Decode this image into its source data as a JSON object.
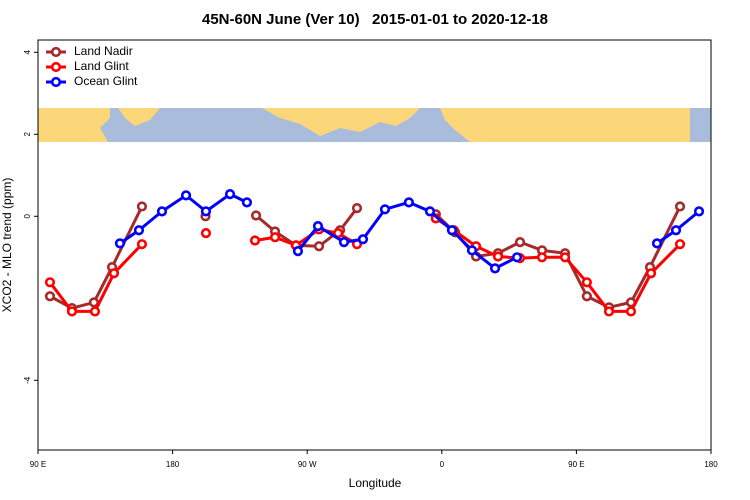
{
  "chart_data": {
    "type": "line",
    "title": "45N-60N June (Ver 10)   2015-01-01 to 2020-12-18",
    "xlabel": "Longitude",
    "ylabel": "XCO2 - MLO trend (ppm)",
    "xlim": [
      90,
      540
    ],
    "ylim": [
      -5.7,
      4.3
    ],
    "xticks": [
      {
        "value": 90,
        "label": "90 E"
      },
      180,
      {
        "value": 270,
        "label": "90 W"
      },
      {
        "value": 360,
        "label": "0"
      },
      {
        "value": 450,
        "label": "90 E"
      },
      {
        "value": 540,
        "label": "180"
      }
    ],
    "yticks": [
      -4,
      0,
      2,
      4
    ],
    "legend": "top-left",
    "series": [
      {
        "name": "Land Nadir",
        "color": "#a52a2a",
        "x": [
          98,
          112.7,
          127.4,
          139.5,
          159.5,
          null,
          202,
          null,
          235.8,
          248.5,
          262.5,
          277.9,
          292,
          303.3,
          null,
          356,
          368.8,
          382.9,
          397.6,
          412.3,
          427,
          442.4,
          457,
          471.8,
          486.5,
          499.2,
          519.3
        ],
        "values": [
          -1.95,
          -2.24,
          -2.1,
          -1.24,
          0.24,
          null,
          0.0,
          null,
          0.02,
          -0.37,
          -0.71,
          -0.73,
          -0.34,
          0.2,
          null,
          0.05,
          -0.39,
          -0.98,
          -0.9,
          -0.63,
          -0.83,
          -0.9,
          -1.95,
          -2.22,
          -2.1,
          -1.24,
          0.24
        ]
      },
      {
        "name": "Land Glint",
        "color": "#ff0000",
        "x": [
          98,
          112.7,
          128.1,
          140.8,
          159.5,
          null,
          202.3,
          null,
          235.1,
          248.5,
          262.5,
          277.9,
          290.7,
          303.3,
          null,
          356,
          368,
          382.9,
          397.6,
          412.3,
          427,
          442.4,
          457,
          471.8,
          486.5,
          499.9,
          519.3
        ],
        "values": [
          -1.61,
          -2.32,
          -2.32,
          -1.39,
          -0.68,
          null,
          -0.41,
          null,
          -0.59,
          -0.51,
          -0.71,
          -0.32,
          -0.41,
          -0.68,
          null,
          -0.05,
          -0.34,
          -0.73,
          -0.98,
          -1.02,
          -1.0,
          -1.0,
          -1.61,
          -2.32,
          -2.32,
          -1.39,
          -0.68
        ]
      },
      {
        "name": "Ocean Glint",
        "color": "#0000ff",
        "x": [
          144.8,
          157.5,
          172.9,
          189,
          202.3,
          218.4,
          229.7,
          null,
          263.8,
          277.2,
          294.6,
          307.3,
          322,
          338,
          352.1,
          366.8,
          380.2,
          395.6,
          410.3,
          null,
          503.9,
          516.6,
          532
        ],
        "values": [
          -0.66,
          -0.34,
          0.12,
          0.51,
          0.12,
          0.54,
          0.34,
          null,
          -0.85,
          -0.24,
          -0.63,
          -0.56,
          0.17,
          0.34,
          0.12,
          -0.34,
          -0.83,
          -1.27,
          -1.0,
          null,
          -0.66,
          -0.34,
          0.12
        ]
      }
    ]
  }
}
